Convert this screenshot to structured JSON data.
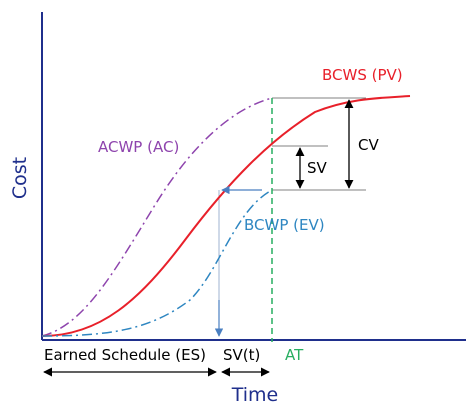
{
  "chart_data": {
    "type": "line",
    "title": "",
    "ylabel": "Cost",
    "xlabel": "Time",
    "grid": false,
    "series": [
      {
        "name": "BCWS (PV)",
        "color": "#e8202a",
        "style": "solid"
      },
      {
        "name": "ACWP (AC)",
        "color": "#8e44ad",
        "style": "dash-dot"
      },
      {
        "name": "BCWP (EV)",
        "color": "#2e86c1",
        "style": "dash-dot"
      }
    ],
    "annotations": {
      "cv": "CV",
      "sv": "SV",
      "earned_schedule": "Earned Schedule (ES)",
      "sv_t": "SV(t)",
      "actual_time": "AT"
    }
  },
  "colors": {
    "axis": "#1f2f8c",
    "pv": "#e8202a",
    "ac": "#8e44ad",
    "ev": "#2e86c1",
    "at_line": "#27ae60",
    "annotation": "#000000",
    "ref_line": "#808080"
  }
}
